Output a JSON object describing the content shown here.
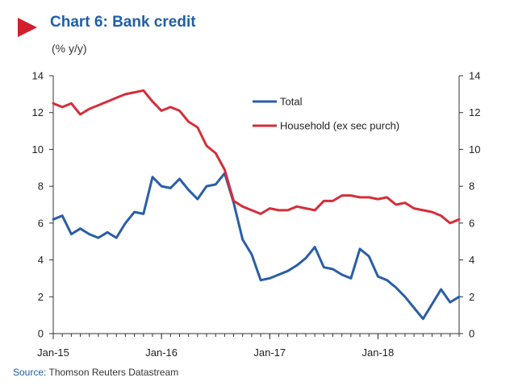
{
  "header": {
    "title": "Chart 6: Bank credit",
    "subtitle": "(% y/y)"
  },
  "source": {
    "label": "Source:",
    "text": "Thomson Reuters Datastream"
  },
  "colors": {
    "marker": "#d0202e",
    "title": "#1f5fa8",
    "total": "#2a5ea8",
    "household": "#d32f3a"
  },
  "chart_data": {
    "type": "line",
    "x_tick_labels": [
      "Jan-15",
      "Jan-16",
      "Jan-17",
      "Jan-18"
    ],
    "y_ticks": [
      0,
      2,
      4,
      6,
      8,
      10,
      12,
      14
    ],
    "ylim": [
      0,
      14
    ],
    "dual_y_axis": true,
    "legend_position": "top-right",
    "grid": false,
    "series": [
      {
        "name": "Total",
        "color": "#2a5ea8",
        "values": [
          6.2,
          6.4,
          5.4,
          5.7,
          5.4,
          5.2,
          5.5,
          5.2,
          6.0,
          6.6,
          6.5,
          8.5,
          8.0,
          7.9,
          8.4,
          7.8,
          7.3,
          8.0,
          8.1,
          8.7,
          7.1,
          5.1,
          4.3,
          2.9,
          3.0,
          3.2,
          3.4,
          3.7,
          4.1,
          4.7,
          3.6,
          3.5,
          3.2,
          3.0,
          4.6,
          4.2,
          3.1,
          2.9,
          2.5,
          2.0,
          1.4,
          0.8,
          1.6,
          2.4,
          1.7,
          2.0
        ]
      },
      {
        "name": "Household (ex sec purch)",
        "color": "#d32f3a",
        "values": [
          12.5,
          12.3,
          12.5,
          11.9,
          12.2,
          12.4,
          12.6,
          12.8,
          13.0,
          13.1,
          13.2,
          12.6,
          12.1,
          12.3,
          12.1,
          11.5,
          11.2,
          10.2,
          9.8,
          8.9,
          7.2,
          6.9,
          6.7,
          6.5,
          6.8,
          6.7,
          6.7,
          6.9,
          6.8,
          6.7,
          7.2,
          7.2,
          7.5,
          7.5,
          7.4,
          7.4,
          7.3,
          7.4,
          7.0,
          7.1,
          6.8,
          6.7,
          6.6,
          6.4,
          6.0,
          6.2
        ]
      }
    ]
  }
}
